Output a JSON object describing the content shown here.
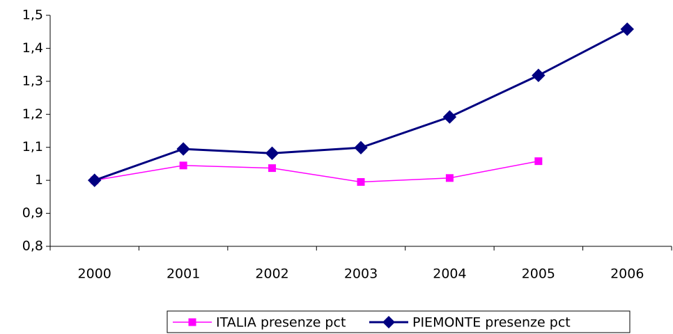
{
  "chart_data": {
    "type": "line",
    "categories": [
      "2000",
      "2001",
      "2002",
      "2003",
      "2004",
      "2005",
      "2006"
    ],
    "series": [
      {
        "name": "ITALIA presenze pct",
        "color": "#ff00ff",
        "marker": "square",
        "values": [
          1,
          1.045,
          1.037,
          0.995,
          1.007,
          1.058,
          null
        ]
      },
      {
        "name": "PIEMONTE presenze pct",
        "color": "#000080",
        "marker": "diamond",
        "values": [
          1,
          1.095,
          1.082,
          1.099,
          1.192,
          1.318,
          1.458
        ]
      }
    ],
    "ylim": [
      0.8,
      1.5
    ],
    "yticks": [
      {
        "value": 0.8,
        "label": "0,8"
      },
      {
        "value": 0.9,
        "label": "0,9"
      },
      1,
      {
        "value": 1.1,
        "label": "1,1"
      },
      {
        "value": 1.2,
        "label": "1,2"
      },
      {
        "value": 1.3,
        "label": "1,3"
      },
      {
        "value": 1.4,
        "label": "1,4"
      },
      {
        "value": 1.5,
        "label": "1,5"
      }
    ],
    "grid": false,
    "legend": "bottom"
  }
}
